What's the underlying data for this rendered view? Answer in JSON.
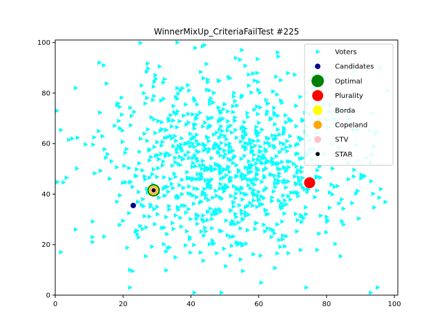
{
  "chart_data": {
    "type": "scatter",
    "title": "WinnerMixUp_CriteriaFailTest #225",
    "xlabel": "",
    "ylabel": "",
    "xlim": [
      0,
      101
    ],
    "ylim": [
      0,
      101
    ],
    "x_ticks": [
      0,
      20,
      40,
      60,
      80,
      100
    ],
    "y_ticks": [
      0,
      20,
      40,
      60,
      80,
      100
    ],
    "grid": false,
    "legend_position": "top-right",
    "voters": {
      "name": "Voters",
      "marker": "triangle-right",
      "color": "#00ffff",
      "count": 1000,
      "distribution": "approx. gaussian cloud",
      "center": [
        51,
        52
      ],
      "spread": [
        19,
        18
      ],
      "sample_points": [
        [
          0.5,
          73
        ],
        [
          5,
          62
        ],
        [
          4,
          61.5
        ],
        [
          6,
          82
        ],
        [
          6,
          26
        ],
        [
          11,
          23
        ],
        [
          11,
          21
        ],
        [
          13,
          92
        ],
        [
          22,
          3
        ],
        [
          22,
          10
        ],
        [
          41,
          1
        ],
        [
          49,
          1
        ],
        [
          74,
          3
        ],
        [
          95,
          3
        ],
        [
          93,
          1
        ],
        [
          98,
          81
        ],
        [
          96,
          42
        ],
        [
          88,
          47
        ],
        [
          85,
          28
        ],
        [
          77,
          64
        ],
        [
          50,
          63
        ],
        [
          55,
          97
        ],
        [
          44,
          99
        ],
        [
          36,
          100
        ]
      ]
    },
    "series": [
      {
        "name": "Voters",
        "marker": "triangle-right",
        "color": "#00ffff",
        "size": 6
      },
      {
        "name": "Candidates",
        "marker": "circle",
        "color": "#00008b",
        "size": 4,
        "points": [
          [
            23,
            35.5
          ],
          [
            29,
            41.5
          ],
          [
            75,
            44.5
          ]
        ]
      },
      {
        "name": "Optimal",
        "marker": "circle",
        "color": "#008000",
        "size": 9,
        "points": [
          [
            29,
            41.5
          ]
        ]
      },
      {
        "name": "Plurality",
        "marker": "circle",
        "color": "#ff0000",
        "size": 8,
        "points": [
          [
            75,
            44.5
          ]
        ]
      },
      {
        "name": "Borda",
        "marker": "circle",
        "color": "#ffff00",
        "size": 7,
        "points": [
          [
            29,
            41.5
          ]
        ]
      },
      {
        "name": "Copeland",
        "marker": "circle",
        "color": "#ffa500",
        "size": 6,
        "points": [
          [
            29,
            41.5
          ]
        ]
      },
      {
        "name": "STV",
        "marker": "circle",
        "color": "#ffc0cb",
        "size": 5,
        "points": [
          [
            29,
            41.5
          ]
        ]
      },
      {
        "name": "STAR",
        "marker": "circle",
        "color": "#000000",
        "size": 3,
        "points": [
          [
            29,
            41.5
          ]
        ]
      }
    ]
  }
}
